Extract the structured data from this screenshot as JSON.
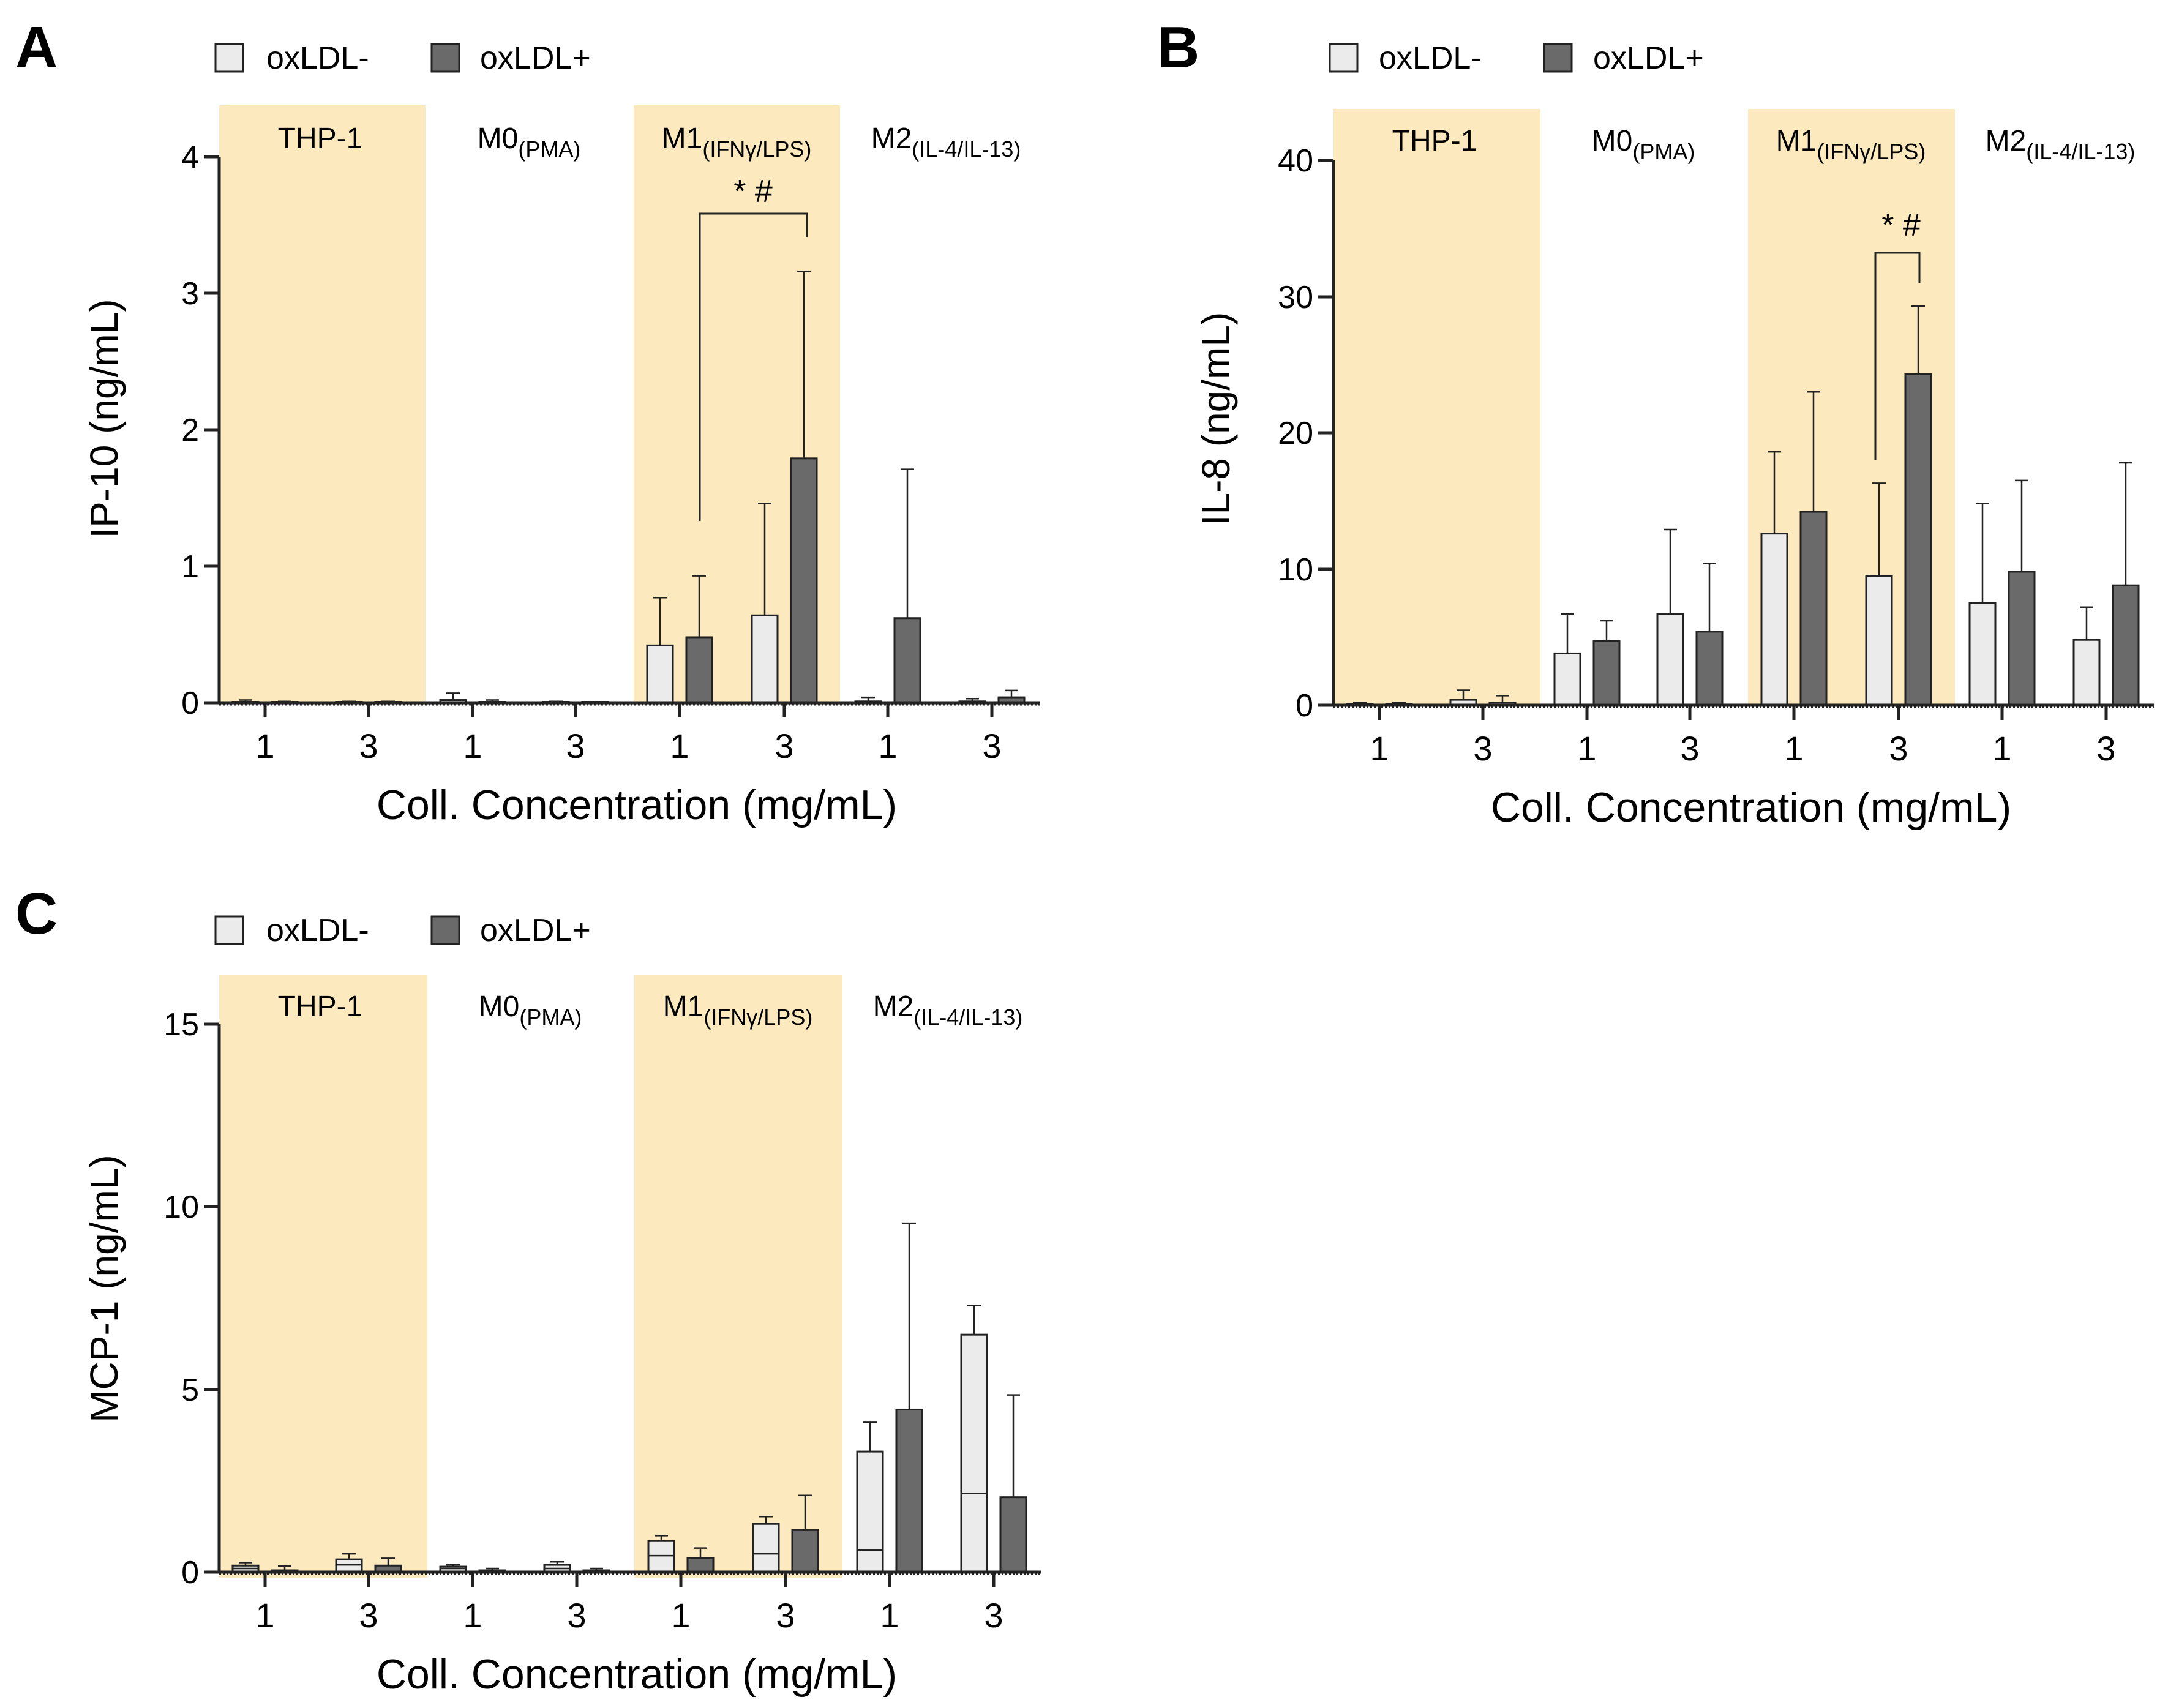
{
  "figure": {
    "legend": {
      "neg": "oxLDL-",
      "pos": "oxLDL+"
    },
    "xlabel": "Coll. Concentration (mg/mL)",
    "tick_categories": [
      "1",
      "3",
      "1",
      "3",
      "1",
      "3",
      "1",
      "3"
    ],
    "groups": [
      {
        "label": "THP-1",
        "sub": ""
      },
      {
        "label": "M0",
        "sub": "(PMA)"
      },
      {
        "label": "M1",
        "sub": "(IFNγ/LPS)"
      },
      {
        "label": "M2",
        "sub": "(IL-4/IL-13)"
      }
    ],
    "colors": {
      "neg": "#ebebeb",
      "pos": "#6a6a6a",
      "shade": "#fce9bd",
      "stroke": "#222222"
    }
  },
  "chart_data": [
    {
      "panel": "A",
      "type": "bar",
      "ylabel": "IP-10 (ng/mL)",
      "ylim": [
        0,
        4
      ],
      "yticks": [
        "0",
        "1",
        "2",
        "3",
        "4"
      ],
      "categories": [
        "THP-1 1",
        "THP-1 3",
        "M0 1",
        "M0 3",
        "M1 1",
        "M1 3",
        "M2 1",
        "M2 3"
      ],
      "series": [
        {
          "name": "oxLDL-",
          "values": [
            0.0,
            0.0,
            0.02,
            0.0,
            0.42,
            0.64,
            0.01,
            0.01
          ],
          "errors": [
            0.02,
            0.01,
            0.05,
            0.01,
            0.35,
            0.82,
            0.03,
            0.02
          ]
        },
        {
          "name": "oxLDL+",
          "values": [
            0.0,
            0.0,
            0.0,
            0.0,
            0.48,
            1.79,
            0.62,
            0.04
          ],
          "errors": [
            0.01,
            0.01,
            0.02,
            0.0,
            0.45,
            1.37,
            1.09,
            0.05
          ]
        }
      ],
      "significance": {
        "label": "* #",
        "from_index": 4,
        "to_index": 5,
        "from_value": 1.3,
        "to_value": 3.57
      }
    },
    {
      "panel": "B",
      "type": "bar",
      "ylabel": "IL-8 (ng/mL)",
      "ylim": [
        0,
        40
      ],
      "yticks": [
        "0",
        "10",
        "20",
        "30",
        "40"
      ],
      "categories": [
        "THP-1 1",
        "THP-1 3",
        "M0 1",
        "M0 3",
        "M1 1",
        "M1 3",
        "M2 1",
        "M2 3"
      ],
      "series": [
        {
          "name": "oxLDL-",
          "values": [
            0.1,
            0.4,
            3.8,
            6.7,
            12.6,
            9.5,
            7.5,
            4.8
          ],
          "errors": [
            0.1,
            0.7,
            2.9,
            6.2,
            6.0,
            6.8,
            7.3,
            2.4
          ]
        },
        {
          "name": "oxLDL+",
          "values": [
            0.1,
            0.2,
            4.7,
            5.4,
            14.2,
            24.3,
            9.8,
            8.8
          ],
          "errors": [
            0.1,
            0.5,
            1.5,
            5.0,
            8.8,
            5.0,
            6.7,
            9.0
          ]
        }
      ],
      "significance": {
        "label": "* #",
        "from_index": 5,
        "to_index": 5,
        "from_value": 18,
        "to_value": 33.5
      }
    },
    {
      "panel": "C",
      "type": "bar",
      "ylabel": "MCP-1 (ng/mL)",
      "ylim": [
        0,
        15
      ],
      "yticks": [
        "0",
        "5",
        "10",
        "15"
      ],
      "categories": [
        "THP-1 1",
        "THP-1 3",
        "M0 1",
        "M0 3",
        "M1 1",
        "M1 3",
        "M2 1",
        "M2 3"
      ],
      "series": [
        {
          "name": "oxLDL-",
          "values": [
            0.18,
            0.35,
            0.15,
            0.2,
            0.85,
            1.32,
            3.3,
            6.5
          ],
          "errors": [
            0.08,
            0.15,
            0.05,
            0.08,
            0.15,
            0.2,
            0.8,
            0.8
          ],
          "inner_lines": [
            0.1,
            0.2,
            0.1,
            0.1,
            0.45,
            0.5,
            0.6,
            2.15
          ]
        },
        {
          "name": "oxLDL+",
          "values": [
            0.05,
            0.18,
            0.05,
            0.05,
            0.38,
            1.15,
            4.45,
            2.05
          ],
          "errors": [
            0.12,
            0.2,
            0.05,
            0.05,
            0.28,
            0.95,
            5.1,
            2.8
          ]
        }
      ]
    }
  ]
}
